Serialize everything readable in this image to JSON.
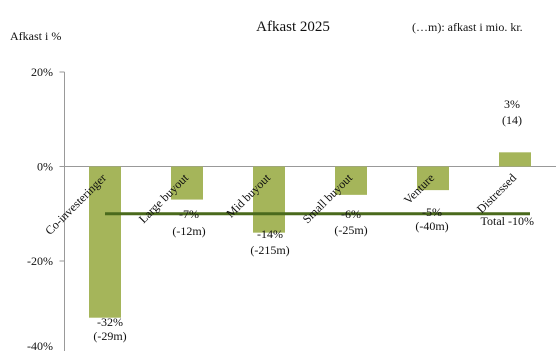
{
  "chart_data": {
    "type": "bar",
    "title": "Afkast 2025",
    "subtitle": "(…m): afkast i mio. kr.",
    "ylabel": "Afkast i %",
    "ylim": [
      -40,
      20
    ],
    "yticks": [
      "20%",
      "0%",
      "-20%",
      "-40%"
    ],
    "grid": false,
    "categories": [
      "Co-investeringer",
      "Large buyout",
      "Mid buyout",
      "Small buyout",
      "Venture",
      "Distressed"
    ],
    "values": [
      -32,
      -7,
      -14,
      -6,
      -5,
      3
    ],
    "labels": [
      "-32%",
      "-7%",
      "-14%",
      "-6%",
      "-5%",
      "3%"
    ],
    "amounts": [
      "(-29m)",
      "(-12m)",
      "(-215m)",
      "(-25m)",
      "(-40m)",
      "(14)"
    ],
    "total": {
      "value": -10,
      "label": "Total -10%"
    },
    "colors": {
      "bar": "#a5b55a",
      "total_line": "#4a6a1c",
      "axis": "#999999"
    }
  }
}
